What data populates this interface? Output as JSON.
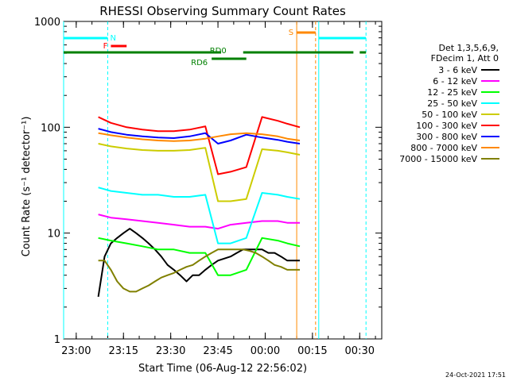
{
  "chart_data": {
    "type": "line",
    "title": "RHESSI Observing Summary Count Rates",
    "xlabel": "Start Time (06-Aug-12 22:56:02)",
    "ylabel": "Count Rate (s⁻¹ detector⁻¹)",
    "ylim": [
      1,
      1000
    ],
    "yscale": "log",
    "y_ticks": [
      "1",
      "10",
      "100",
      "1000"
    ],
    "x_ticks": [
      "23:00",
      "23:15",
      "23:30",
      "23:45",
      "00:00",
      "00:15",
      "00:30"
    ],
    "x_tick_minutes": [
      4,
      19,
      34,
      49,
      64,
      79,
      94
    ],
    "xlim_minutes": [
      0,
      101
    ],
    "legend_header": [
      "Det 1,3,5,6,9,",
      "FDecim 1, Att 0"
    ],
    "legend_placement": "right",
    "timestamp": "24-Oct-2021 17:51",
    "series": [
      {
        "name": "3 - 6 keV",
        "color": "#000000",
        "x": [
          11,
          13,
          15,
          17,
          19,
          21,
          23,
          25,
          27,
          29,
          31,
          33,
          35,
          37,
          39,
          41,
          43,
          45,
          47,
          49,
          53,
          55,
          57,
          59,
          61,
          63,
          65,
          67,
          69,
          71,
          73,
          75
        ],
        "values": [
          2.5,
          6,
          8,
          9,
          10,
          11,
          10,
          9,
          8,
          7,
          6,
          5,
          4.5,
          4,
          3.5,
          4,
          4,
          4.5,
          5,
          5.5,
          6,
          6.5,
          7,
          7,
          7,
          7,
          6.5,
          6.5,
          6,
          5.5,
          5.5,
          5.5
        ]
      },
      {
        "name": "6 - 12 keV",
        "color": "#ff00ff",
        "x": [
          11,
          15,
          20,
          25,
          30,
          35,
          40,
          45,
          49,
          53,
          58,
          63,
          68,
          71,
          75
        ],
        "values": [
          15,
          14,
          13.5,
          13,
          12.5,
          12,
          11.5,
          11.5,
          11,
          12,
          12.5,
          13,
          13,
          12.5,
          12.5
        ]
      },
      {
        "name": "12 - 25 keV",
        "color": "#00ff00",
        "x": [
          11,
          15,
          20,
          25,
          30,
          35,
          40,
          45,
          49,
          53,
          58,
          63,
          68,
          71,
          75
        ],
        "values": [
          9,
          8.5,
          8,
          7.5,
          7,
          7,
          6.5,
          6.5,
          4,
          4,
          4.5,
          9,
          8.5,
          8,
          7.5
        ]
      },
      {
        "name": "25 - 50 keV",
        "color": "#00ffff",
        "x": [
          11,
          15,
          20,
          25,
          30,
          35,
          40,
          45,
          49,
          53,
          58,
          63,
          68,
          71,
          75
        ],
        "values": [
          27,
          25,
          24,
          23,
          23,
          22,
          22,
          23,
          8,
          8,
          9,
          24,
          23,
          22,
          21
        ]
      },
      {
        "name": "50 - 100 keV",
        "color": "#cccc00",
        "x": [
          11,
          15,
          20,
          25,
          30,
          35,
          40,
          45,
          49,
          53,
          58,
          63,
          68,
          71,
          75
        ],
        "values": [
          70,
          66,
          63,
          61,
          60,
          60,
          61,
          64,
          20,
          20,
          21,
          62,
          60,
          58,
          55
        ]
      },
      {
        "name": "100 - 300 keV",
        "color": "#ff0000",
        "x": [
          11,
          15,
          20,
          25,
          30,
          35,
          40,
          45,
          49,
          53,
          58,
          63,
          68,
          71,
          75
        ],
        "values": [
          125,
          110,
          100,
          95,
          92,
          92,
          95,
          102,
          36,
          38,
          42,
          125,
          115,
          108,
          100
        ]
      },
      {
        "name": "300 - 800 keV",
        "color": "#0000ff",
        "x": [
          11,
          15,
          20,
          25,
          30,
          35,
          40,
          45,
          49,
          53,
          58,
          63,
          68,
          71,
          75
        ],
        "values": [
          97,
          90,
          85,
          82,
          80,
          79,
          82,
          88,
          70,
          75,
          85,
          80,
          76,
          73,
          70
        ]
      },
      {
        "name": "800 - 7000 keV",
        "color": "#ff8800",
        "x": [
          11,
          15,
          20,
          25,
          30,
          35,
          40,
          45,
          49,
          53,
          58,
          63,
          68,
          71,
          75
        ],
        "values": [
          88,
          84,
          80,
          77,
          75,
          74,
          75,
          78,
          82,
          86,
          88,
          86,
          82,
          78,
          75
        ]
      },
      {
        "name": "7000 - 15000 keV",
        "color": "#808000",
        "x": [
          11,
          13,
          15,
          17,
          19,
          21,
          23,
          25,
          27,
          29,
          31,
          33,
          35,
          37,
          39,
          41,
          43,
          45,
          47,
          49,
          53,
          55,
          57,
          59,
          61,
          63,
          65,
          67,
          69,
          71,
          73,
          75
        ],
        "values": [
          5.5,
          5.5,
          4.5,
          3.5,
          3,
          2.8,
          2.8,
          3,
          3.2,
          3.5,
          3.8,
          4,
          4.2,
          4.5,
          4.8,
          5,
          5.5,
          6,
          6.5,
          7,
          7,
          7,
          7,
          6.8,
          6.5,
          6,
          5.5,
          5,
          4.8,
          4.5,
          4.5,
          4.5
        ]
      }
    ],
    "state_bars": [
      {
        "label": "N",
        "color": "#00ffff",
        "segments": [
          [
            0,
            14
          ],
          [
            81,
            96
          ]
        ]
      },
      {
        "label": "F",
        "color": "#ff0000",
        "segments": [
          [
            15,
            20
          ]
        ]
      },
      {
        "label": "S",
        "color": "#ff8800",
        "segments": [
          [
            74,
            80
          ]
        ]
      },
      {
        "label": "RD0",
        "color": "#008000",
        "segments": [
          [
            0,
            50
          ],
          [
            57,
            92
          ],
          [
            94,
            96
          ]
        ]
      },
      {
        "label": "RD6",
        "color": "#008000",
        "segments": [
          [
            47,
            58
          ]
        ]
      }
    ],
    "vertical_markers": [
      {
        "x": 0,
        "color": "#00ffff",
        "style": "solid"
      },
      {
        "x": 14,
        "color": "#00ffff",
        "style": "dashed"
      },
      {
        "x": 74,
        "color": "#ff8800",
        "style": "solid"
      },
      {
        "x": 81,
        "color": "#00ffff",
        "style": "solid"
      },
      {
        "x": 80,
        "color": "#ff8800",
        "style": "dashed"
      },
      {
        "x": 96,
        "color": "#00ffff",
        "style": "dashed"
      }
    ]
  }
}
